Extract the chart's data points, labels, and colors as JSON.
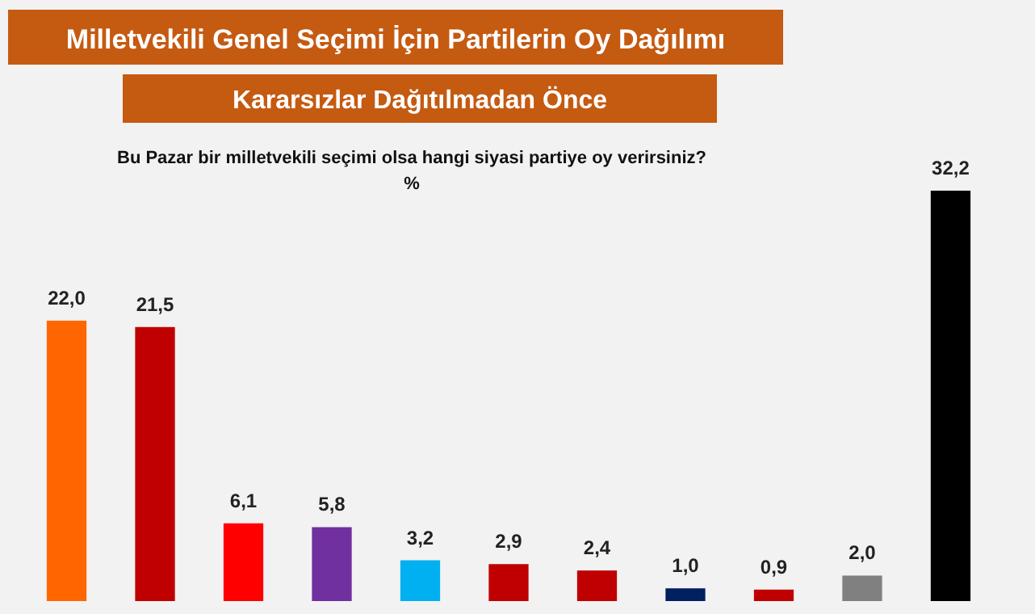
{
  "chart_data": {
    "type": "bar",
    "title": "Milletvekili Genel Seçimi İçin Partilerin Oy Dağılımı",
    "subtitle": "Kararsızlar Dağıtılmadan Önce",
    "annotations": [
      "Bu Pazar bir milletvekili seçimi olsa hangi siyasi partiye oy verirsiniz?",
      "%"
    ],
    "categories": [
      null,
      null,
      null,
      null,
      null,
      null,
      null,
      null,
      null,
      null,
      null
    ],
    "values": [
      22.0,
      21.5,
      6.1,
      5.8,
      3.2,
      2.9,
      2.4,
      1.0,
      0.9,
      2.0,
      32.2
    ],
    "colors": [
      "#ff6600",
      "#c00000",
      "#ff0000",
      "#7030a0",
      "#00b0f0",
      "#c00000",
      "#c00000",
      "#002060",
      "#c00000",
      "#808080",
      "#000000"
    ],
    "value_labels": [
      "22,0",
      "21,5",
      "6,1",
      "5,8",
      "3,2",
      "2,9",
      "2,4",
      "1,0",
      "0,9",
      "2,0",
      "32,2"
    ]
  }
}
